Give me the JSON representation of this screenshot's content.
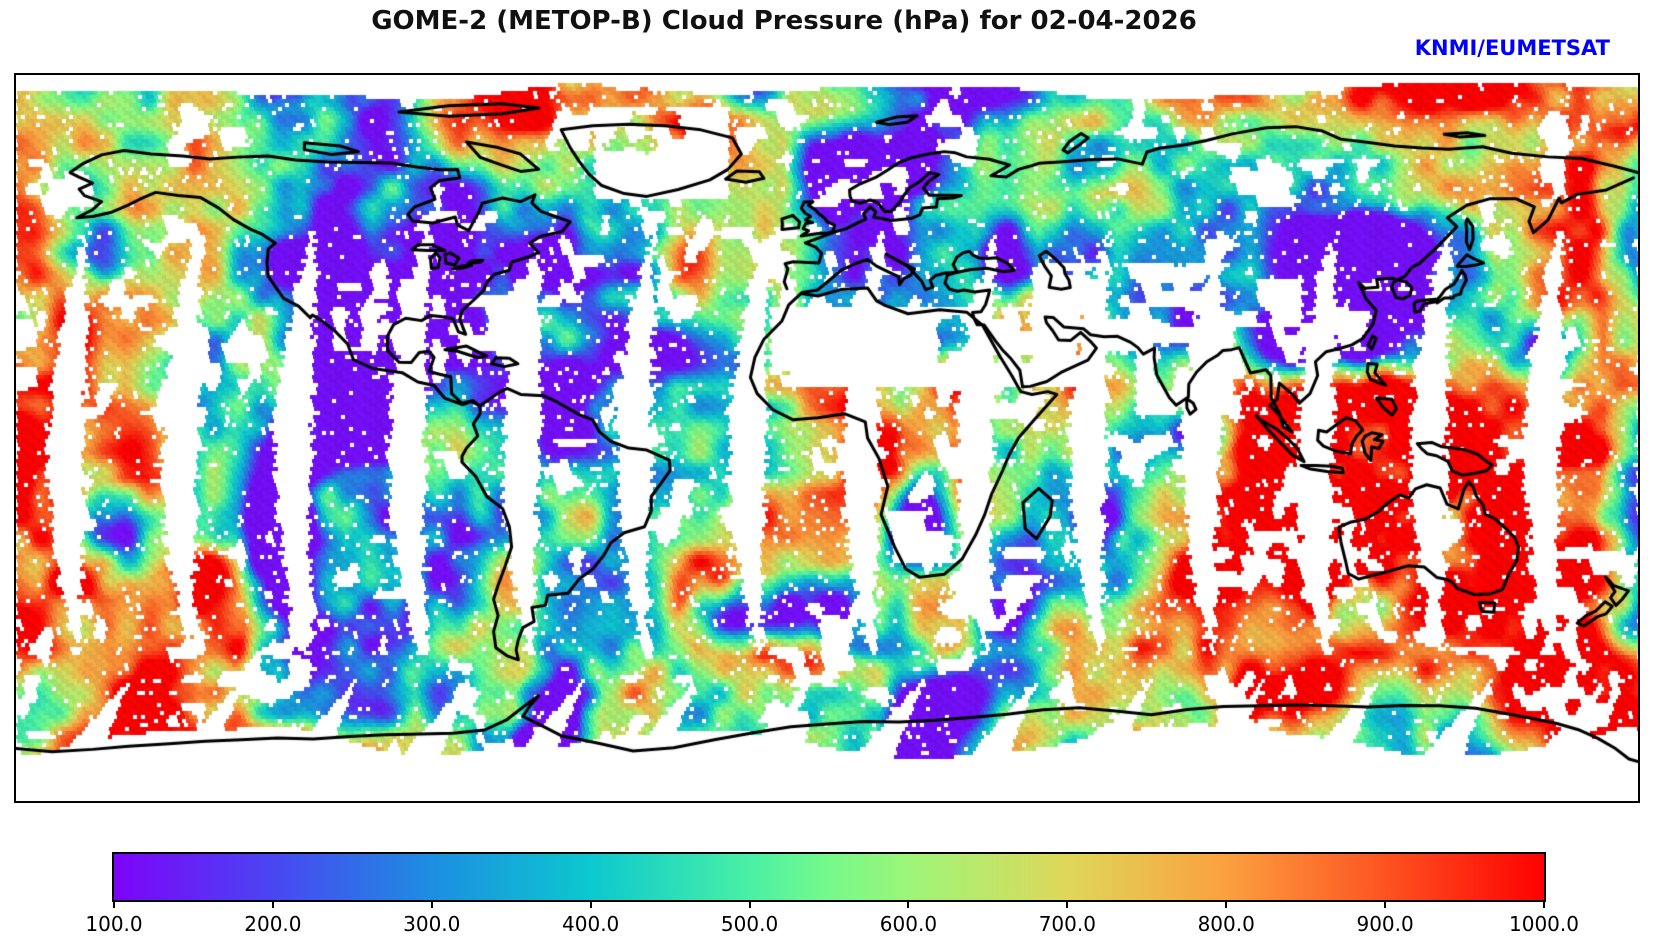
{
  "header": {
    "title": "GOME-2 (METOP-B) Cloud Pressure (hPa) for 02-04-2026",
    "attribution": "KNMI/EUMETSAT"
  },
  "colors": {
    "title": "#111111",
    "attribution": "#0000ff",
    "frame": "#000000",
    "background": "#ffffff",
    "coastline": "#000000",
    "no_data": "#ffffff"
  },
  "colorbar": {
    "unit": "hPa",
    "min": 100.0,
    "max": 1000.0,
    "tick_labels": [
      "100.0",
      "200.0",
      "300.0",
      "400.0",
      "500.0",
      "600.0",
      "700.0",
      "800.0",
      "900.0",
      "1000.0"
    ],
    "gradient_stops": [
      {
        "t": 0.0,
        "color": "#7d03fa"
      },
      {
        "t": 0.111,
        "color": "#4a46f2"
      },
      {
        "t": 0.222,
        "color": "#1d8ee1"
      },
      {
        "t": 0.333,
        "color": "#0cc8cf"
      },
      {
        "t": 0.444,
        "color": "#49f0a5"
      },
      {
        "t": 0.5,
        "color": "#76f98b"
      },
      {
        "t": 0.556,
        "color": "#9cf578"
      },
      {
        "t": 0.667,
        "color": "#dfd75a"
      },
      {
        "t": 0.778,
        "color": "#fba03f"
      },
      {
        "t": 0.889,
        "color": "#fd5321"
      },
      {
        "t": 1.0,
        "color": "#fe0101"
      }
    ]
  },
  "map": {
    "projection": "equirectangular",
    "lon_range": [
      -180,
      180
    ],
    "lat_range": [
      -90,
      90
    ],
    "swath_gap_count": 14,
    "coastline_color": "#000000"
  },
  "chart_data": {
    "type": "heatmap",
    "title": "GOME-2 (METOP-B) Cloud Pressure (hPa) for 02-04-2026",
    "variable": "cloud pressure",
    "units": "hPa",
    "value_range": [
      100,
      1000
    ],
    "colorbar_ticks": [
      100,
      200,
      300,
      400,
      500,
      600,
      700,
      800,
      900,
      1000
    ],
    "colormap": "rainbow (violet 100 hPa -> blue -> cyan -> green -> khaki -> orange -> red 1000 hPa)",
    "coverage": "global daily polar-orbit swaths with lens-shaped inter-swath gaps at low/mid latitudes; white = no data (clear sky / gaps)",
    "legend_position": "horizontal colorbar below map"
  }
}
